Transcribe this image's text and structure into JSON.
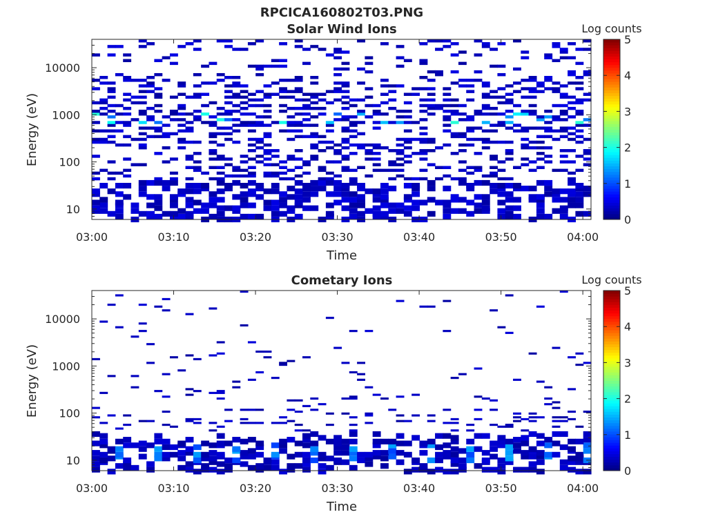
{
  "figure": {
    "filename_title": "RPCICA160802T03.PNG"
  },
  "chart_data": [
    {
      "type": "heatmap",
      "title": "Solar Wind Ions",
      "xlabel": "Time",
      "ylabel": "Energy (eV)",
      "x_range": [
        "03:00",
        "04:01"
      ],
      "x_ticks": [
        "03:00",
        "03:10",
        "03:20",
        "03:30",
        "03:40",
        "03:50",
        "04:00"
      ],
      "y_scale": "log",
      "y_range": [
        6,
        40000
      ],
      "y_ticks": [
        10,
        100,
        1000,
        10000
      ],
      "y_tick_labels": [
        "10",
        "100",
        "1000",
        "10000"
      ],
      "colorbar": {
        "label": "Log counts",
        "range": [
          0,
          5
        ],
        "ticks": [
          "0",
          "1",
          "2",
          "3",
          "4",
          "5"
        ],
        "colormap": "jet"
      },
      "time_bins": 64,
      "energy_bins": 32,
      "description_of_values": "Sparse counts mostly at log level ~0-0.5 across all energies; dense at 6-40 eV; enhanced band near 700-1000 eV with values up to ~2",
      "hot_band": {
        "energy_eV": [
          700,
          1000
        ],
        "peak_log_counts": 2.0
      }
    },
    {
      "type": "heatmap",
      "title": "Cometary Ions",
      "xlabel": "Time",
      "ylabel": "Energy (eV)",
      "x_range": [
        "03:00",
        "04:01"
      ],
      "x_ticks": [
        "03:00",
        "03:10",
        "03:20",
        "03:30",
        "03:40",
        "03:50",
        "04:00"
      ],
      "y_scale": "log",
      "y_range": [
        6,
        40000
      ],
      "y_ticks": [
        10,
        100,
        1000,
        10000
      ],
      "y_tick_labels": [
        "10",
        "100",
        "1000",
        "10000"
      ],
      "colorbar": {
        "label": "Log counts",
        "range": [
          0,
          5
        ],
        "ticks": [
          "0",
          "1",
          "2",
          "3",
          "4",
          "5"
        ],
        "colormap": "jet"
      },
      "time_bins": 64,
      "energy_bins": 32,
      "description_of_values": "Very sparse counts above 100 eV; dense low-energy band 6-30 eV with periodic peaks ~1.5 log counts",
      "hot_band": {
        "energy_eV": [
          10,
          20
        ],
        "peak_log_counts": 1.5
      }
    }
  ]
}
